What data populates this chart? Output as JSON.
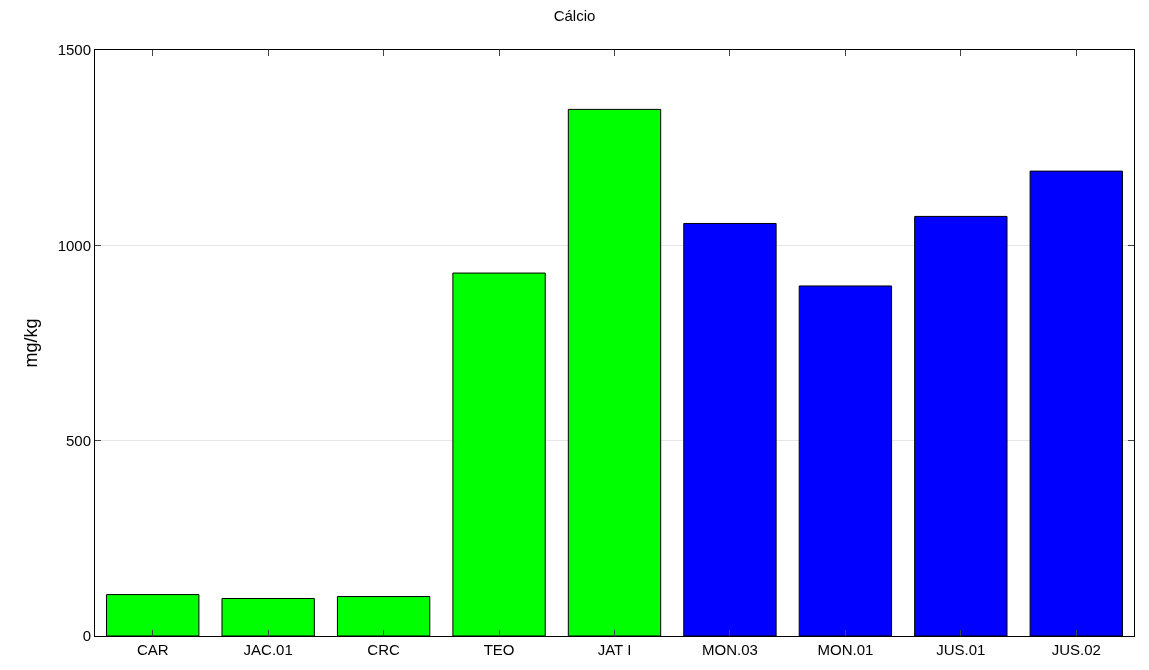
{
  "chart_data": {
    "type": "bar",
    "title": "Cálcio",
    "ylabel": "mg/kg",
    "categories": [
      "CAR",
      "JAC.01",
      "CRC",
      "TEO",
      "JAT I",
      "MON.03",
      "MON.01",
      "JUS.01",
      "JUS.02"
    ],
    "values": [
      106,
      96,
      101,
      929,
      1348,
      1056,
      896,
      1074,
      1190
    ],
    "colors": [
      "#00ff00",
      "#00ff00",
      "#00ff00",
      "#00ff00",
      "#00ff00",
      "#0000ff",
      "#0000ff",
      "#0000ff",
      "#0000ff"
    ],
    "ylim": [
      0,
      1500
    ],
    "yticks": [
      0,
      500,
      1000,
      1500
    ],
    "grid": "y"
  }
}
